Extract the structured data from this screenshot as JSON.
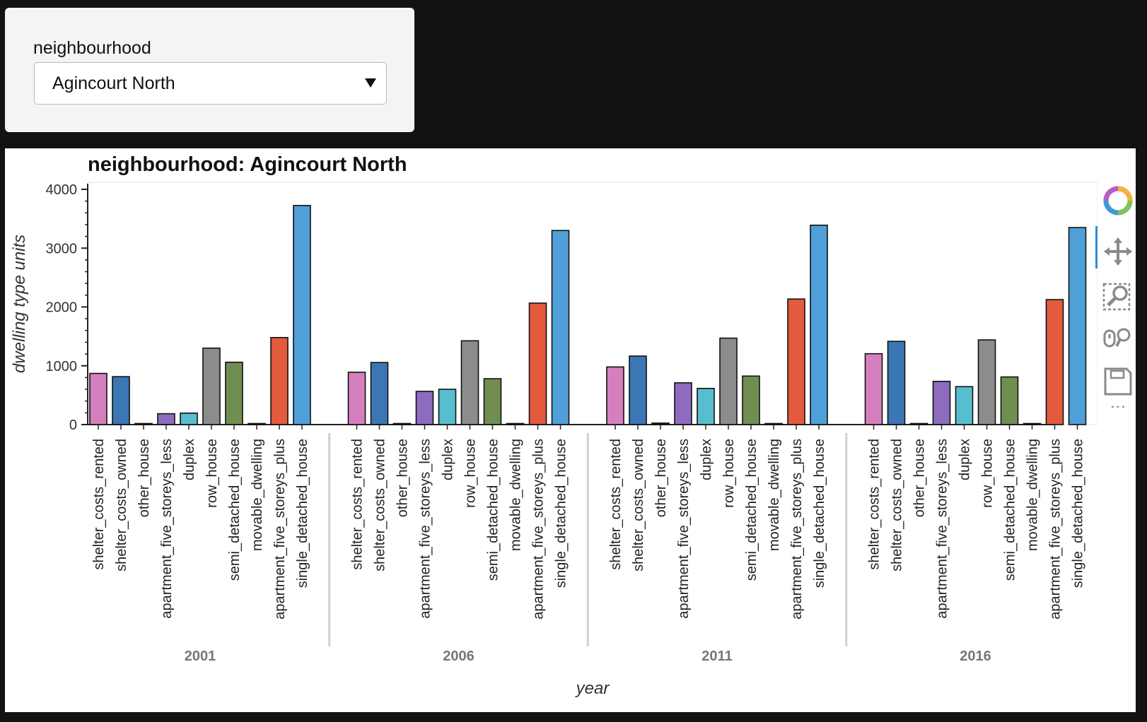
{
  "widget": {
    "label": "neighbourhood",
    "selected": "Agincourt North"
  },
  "toolbar": {
    "more_label": "⋮"
  },
  "colors": {
    "shelter_costs_rented": "#d67fbf",
    "shelter_costs_owned": "#3a77b4",
    "other_house": "#222222",
    "apartment_five_storeys_less": "#8d6bbf",
    "duplex": "#56bece",
    "row_house": "#8c8c8c",
    "semi_detached_house": "#718e52",
    "movable_dwelling": "#7a2e2e",
    "apartment_five_storeys_plus": "#e35a3e",
    "single_detached_house": "#4f9fd8"
  },
  "chart_data": {
    "type": "bar",
    "title": "neighbourhood: Agincourt North",
    "xlabel": "year",
    "ylabel": "dwelling type units",
    "ylim": [
      0,
      4000
    ],
    "yticks": [
      "0",
      "1000",
      "2000",
      "3000",
      "4000"
    ],
    "groups": [
      "2001",
      "2006",
      "2011",
      "2016"
    ],
    "categories": [
      "shelter_costs_rented",
      "shelter_costs_owned",
      "other_house",
      "apartment_five_storeys_less",
      "duplex",
      "row_house",
      "semi_detached_house",
      "movable_dwelling",
      "apartment_five_storeys_plus",
      "single_detached_house"
    ],
    "values": {
      "2001": [
        870,
        815,
        5,
        185,
        195,
        1300,
        1060,
        0,
        1480,
        3725
      ],
      "2006": [
        890,
        1055,
        0,
        565,
        600,
        1425,
        780,
        0,
        2065,
        3300
      ],
      "2011": [
        980,
        1165,
        25,
        710,
        615,
        1470,
        825,
        10,
        2135,
        3390
      ],
      "2016": [
        1205,
        1415,
        15,
        735,
        645,
        1440,
        810,
        5,
        2125,
        3350
      ]
    }
  }
}
